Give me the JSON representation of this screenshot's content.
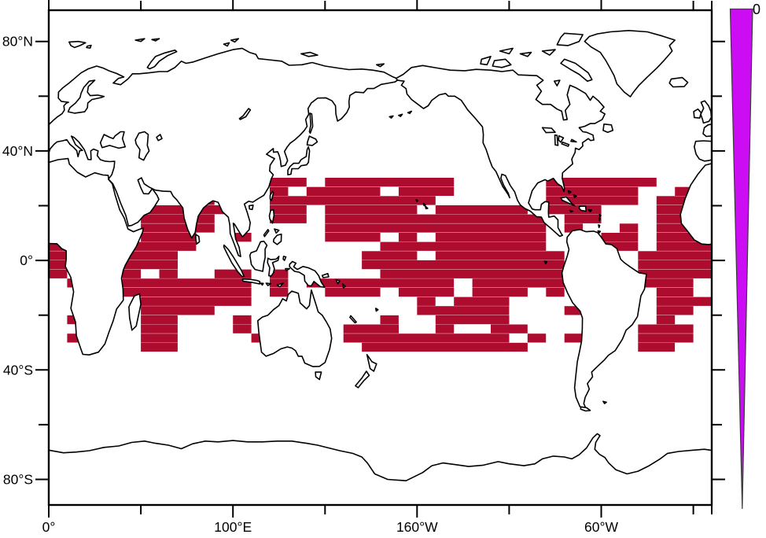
{
  "figure": {
    "type": "world-map-raster-plot",
    "background": "#ffffff",
    "frame_color": "#000000"
  },
  "map": {
    "projection": "cylindrical-equidistant",
    "lon_range_deg": [
      0,
      360
    ],
    "lat_range_deg": [
      -90,
      90
    ]
  },
  "axes": {
    "x": {
      "tick_lons_deg": [
        0,
        50,
        100,
        150,
        200,
        250,
        300,
        350,
        360
      ],
      "labels": [
        {
          "lon_deg": 0,
          "text": "0°"
        },
        {
          "lon_deg": 100,
          "text": "100°E"
        },
        {
          "lon_deg": 200,
          "text": "160°W"
        },
        {
          "lon_deg": 300,
          "text": "60°W"
        }
      ]
    },
    "y": {
      "tick_lats_deg": [
        80,
        60,
        40,
        20,
        0,
        -20,
        -40,
        -60,
        -80
      ],
      "labels": [
        {
          "lat_deg": 80,
          "text": "80°N"
        },
        {
          "lat_deg": 40,
          "text": "40°N"
        },
        {
          "lat_deg": 0,
          "text": "0°"
        },
        {
          "lat_deg": -40,
          "text": "40°S"
        },
        {
          "lat_deg": -80,
          "text": "80°S"
        }
      ]
    }
  },
  "colorbar": {
    "label": "0",
    "fill": "#CC0CF2",
    "outline": "#3a3a3a",
    "shape": "tapered-wedge"
  },
  "chart_data": {
    "type": "heatmap",
    "description": "Dark-red mask of grid cells over tropical oceans (about 30N to 30S): Indian Ocean, west/central Pacific, SPCZ band, and equatorial Atlantic, on a Pacific-centered world map",
    "cell_fill": "#AE0C2F",
    "cell_lon_deg": 10,
    "cell_lat_deg": 3.35,
    "grid_lat_top_deg": 30.2,
    "rows": [
      {
        "r": 0,
        "runs": [
          [
            12,
            2
          ],
          [
            15,
            7
          ],
          [
            27,
            6
          ]
        ]
      },
      {
        "r": 1,
        "runs": [
          [
            12,
            1
          ],
          [
            14,
            4
          ],
          [
            19,
            3
          ],
          [
            27,
            5
          ],
          [
            34,
            1
          ]
        ]
      },
      {
        "r": 2,
        "runs": [
          [
            8,
            1
          ],
          [
            12,
            9
          ],
          [
            27,
            5
          ],
          [
            33,
            2
          ]
        ]
      },
      {
        "r": 3,
        "runs": [
          [
            5,
            5
          ],
          [
            12,
            2
          ],
          [
            15,
            5
          ],
          [
            21,
            5
          ],
          [
            27,
            3
          ],
          [
            33,
            2
          ]
        ]
      },
      {
        "r": 4,
        "runs": [
          [
            5,
            4
          ],
          [
            12,
            2
          ],
          [
            15,
            12
          ],
          [
            28,
            2
          ],
          [
            33,
            2
          ]
        ]
      },
      {
        "r": 5,
        "runs": [
          [
            5,
            4
          ],
          [
            15,
            12
          ],
          [
            28,
            1
          ],
          [
            31,
            1
          ],
          [
            33,
            2
          ]
        ]
      },
      {
        "r": 6,
        "runs": [
          [
            0,
            1
          ],
          [
            5,
            3
          ],
          [
            10,
            1
          ],
          [
            15,
            3
          ],
          [
            19,
            1
          ],
          [
            21,
            6
          ],
          [
            30,
            2
          ],
          [
            33,
            3
          ]
        ]
      },
      {
        "r": 7,
        "runs": [
          [
            0,
            2
          ],
          [
            4,
            4
          ],
          [
            18,
            9
          ],
          [
            30,
            2
          ],
          [
            33,
            3
          ]
        ]
      },
      {
        "r": 8,
        "runs": [
          [
            0,
            1
          ],
          [
            4,
            3
          ],
          [
            17,
            3
          ],
          [
            21,
            7
          ],
          [
            32,
            4
          ]
        ]
      },
      {
        "r": 9,
        "runs": [
          [
            0,
            1
          ],
          [
            4,
            3
          ],
          [
            17,
            11
          ],
          [
            32,
            4
          ]
        ]
      },
      {
        "r": 10,
        "runs": [
          [
            0,
            1
          ],
          [
            4,
            1
          ],
          [
            6,
            1
          ],
          [
            9,
            2
          ],
          [
            12,
            1
          ],
          [
            18,
            10
          ],
          [
            32,
            4
          ]
        ]
      },
      {
        "r": 11,
        "runs": [
          [
            1,
            1
          ],
          [
            4,
            7
          ],
          [
            12,
            1
          ],
          [
            14,
            8
          ],
          [
            23,
            5
          ],
          [
            32,
            3
          ]
        ]
      },
      {
        "r": 12,
        "runs": [
          [
            4,
            7
          ],
          [
            12,
            1
          ],
          [
            15,
            3
          ],
          [
            19,
            3
          ],
          [
            23,
            3
          ],
          [
            27,
            1
          ],
          [
            33,
            2
          ]
        ]
      },
      {
        "r": 13,
        "runs": [
          [
            5,
            6
          ],
          [
            20,
            1
          ],
          [
            22,
            3
          ],
          [
            33,
            3
          ]
        ]
      },
      {
        "r": 14,
        "runs": [
          [
            5,
            4
          ],
          [
            20,
            5
          ],
          [
            28,
            1
          ],
          [
            33,
            2
          ]
        ]
      },
      {
        "r": 15,
        "runs": [
          [
            1,
            1
          ],
          [
            5,
            2
          ],
          [
            10,
            1
          ],
          [
            18,
            1
          ],
          [
            21,
            4
          ],
          [
            33,
            1
          ]
        ]
      },
      {
        "r": 16,
        "runs": [
          [
            5,
            2
          ],
          [
            10,
            1
          ],
          [
            16,
            3
          ],
          [
            21,
            1
          ],
          [
            24,
            2
          ],
          [
            32,
            3
          ]
        ]
      },
      {
        "r": 17,
        "runs": [
          [
            1,
            1
          ],
          [
            5,
            2
          ],
          [
            11,
            1
          ],
          [
            16,
            9
          ],
          [
            26,
            1
          ],
          [
            28,
            1
          ],
          [
            32,
            3
          ]
        ]
      },
      {
        "r": 18,
        "runs": [
          [
            5,
            2
          ],
          [
            17,
            9
          ],
          [
            32,
            2
          ]
        ]
      }
    ]
  }
}
